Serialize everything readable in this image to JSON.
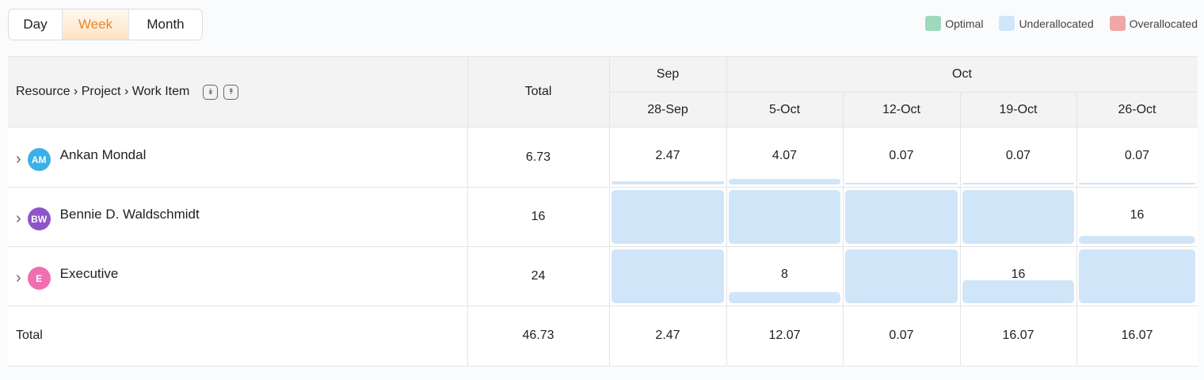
{
  "view_toggle": {
    "options": [
      "Day",
      "Week",
      "Month"
    ],
    "active": "Week"
  },
  "legend": [
    {
      "label": "Optimal",
      "color": "#9fd8bd"
    },
    {
      "label": "Underallocated",
      "color": "#d0e5f8"
    },
    {
      "label": "Overallocated",
      "color": "#f0a7a5"
    }
  ],
  "header": {
    "resource_label": "Resource › Project › Work Item",
    "expand_all_icon": "double-chevron-down-icon",
    "collapse_all_icon": "double-chevron-up-icon",
    "total_label": "Total",
    "months": [
      {
        "label": "Sep",
        "span": 1
      },
      {
        "label": "Oct",
        "span": 4
      }
    ],
    "weeks": [
      "28-Sep",
      "5-Oct",
      "12-Oct",
      "19-Oct",
      "26-Oct"
    ]
  },
  "rows": [
    {
      "name": "Ankan Mondal",
      "initials": "AM",
      "avatar_color": "#3bb0e8",
      "total": "6.73",
      "cells": [
        {
          "value": "2.47",
          "fill": 0.06
        },
        {
          "value": "4.07",
          "fill": 0.1
        },
        {
          "value": "0.07",
          "fill": 0.01
        },
        {
          "value": "0.07",
          "fill": 0.01
        },
        {
          "value": "0.07",
          "fill": 0.01
        }
      ]
    },
    {
      "name": "Bennie D. Waldschmidt",
      "initials": "BW",
      "avatar_color": "#8e55c9",
      "total": "16",
      "cells": [
        {
          "value": "",
          "fill": 1
        },
        {
          "value": "",
          "fill": 1
        },
        {
          "value": "",
          "fill": 1
        },
        {
          "value": "",
          "fill": 1
        },
        {
          "value": "16",
          "fill": 0.15
        }
      ]
    },
    {
      "name": "Executive",
      "initials": "E",
      "avatar_color": "#ef6fb0",
      "total": "24",
      "cells": [
        {
          "value": "",
          "fill": 1
        },
        {
          "value": "8",
          "fill": 0.2
        },
        {
          "value": "",
          "fill": 1
        },
        {
          "value": "16",
          "fill": 0.42
        },
        {
          "value": "",
          "fill": 1
        }
      ]
    }
  ],
  "footer": {
    "label": "Total",
    "total": "46.73",
    "weeks": [
      "2.47",
      "12.07",
      "0.07",
      "16.07",
      "16.07"
    ]
  }
}
